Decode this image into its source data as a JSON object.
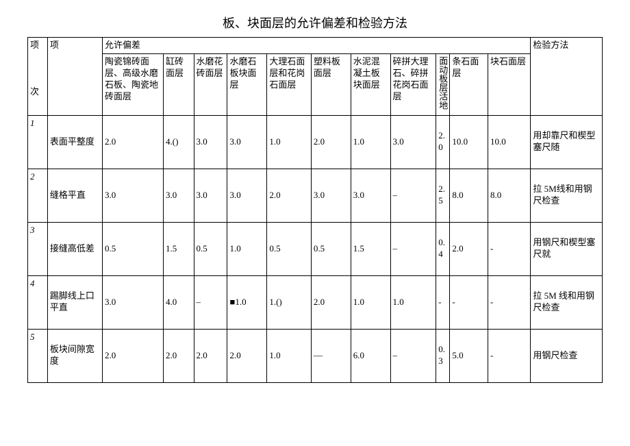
{
  "title": "板、块面层的允许偏差和检验方法",
  "header": {
    "idx_top": "项",
    "idx_bottom": "次",
    "item": "项",
    "deviation_group": "允许偏差",
    "method": "检验方法"
  },
  "columns": [
    "陶瓷锦砖面层、高级水磨石板、陶瓷地砖面层",
    "缸砖面层",
    "水磨花砖面层",
    "水磨石板块面层",
    "大理石面层和花岗石面层",
    "塑料板面层",
    "水泥混凝土板块面层",
    "碎拼大理石、碎拼花岗石面层",
    "面动板层活地",
    "条石面层",
    "块石面层"
  ],
  "rows": [
    {
      "idx": "1",
      "item": "表面平整度",
      "values": [
        "2.0",
        "4.()",
        "3.0",
        "3.0",
        "1.0",
        "2.0",
        "1.0",
        "3.0",
        "2.0",
        "10.0",
        "10.0"
      ],
      "method": "用却靠尺和楔型塞尺随"
    },
    {
      "idx": "2",
      "item": "缝格平直",
      "values": [
        "3.0",
        "3.0",
        "3.0",
        "3.0",
        "2.0",
        "3.0",
        "3.0",
        "–",
        "2.5",
        "8.0",
        "8.0"
      ],
      "method": "拉 5M线和用钢尺检查"
    },
    {
      "idx": "3",
      "item": "接缝高低差",
      "values": [
        "0.5",
        "1.5",
        "0.5",
        "1.0",
        "0.5",
        "0.5",
        "1.5",
        "–",
        "0.4",
        "2.0",
        "-"
      ],
      "method": "用钢尺和楔型塞尺就"
    },
    {
      "idx": "4",
      "item": "踢脚线上口平直",
      "values": [
        "3.0",
        "4.0",
        "–",
        "■1.0",
        "1.()",
        "2.0",
        "1.0",
        "1.0",
        "-",
        "-",
        "-"
      ],
      "method": "拉 5M 线和用钢尺检查"
    },
    {
      "idx": "5",
      "item": "板块间隙宽度",
      "values": [
        "2.0",
        "2.0",
        "2.0",
        "2.0",
        "1.0",
        "—",
        "6.0",
        "–",
        "0.3",
        "5.0",
        "-"
      ],
      "method": "用钢尺检查"
    }
  ]
}
